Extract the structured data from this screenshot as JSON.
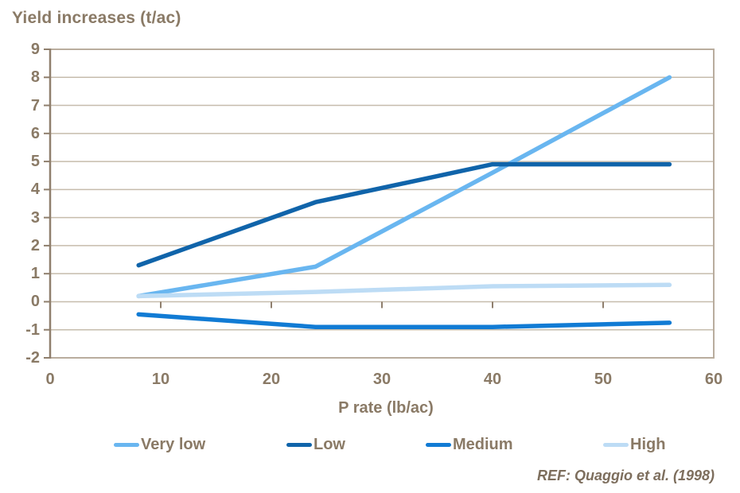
{
  "chart": {
    "title": "Yield increases (t/ac)",
    "x_axis_label": "P rate (lb/ac)",
    "reference": "REF: Quaggio et al. (1998)",
    "text_color": "#8a7a66",
    "grid_color": "#c6bcac",
    "border_color": "#b9ad9e",
    "axis_color": "#8f7f6d",
    "background_color": "#ffffff"
  },
  "chart_data": {
    "type": "line",
    "title": "Yield increases (t/ac)",
    "xlabel": "P rate (lb/ac)",
    "ylabel": "Yield increases (t/ac)",
    "xlim": [
      0,
      60
    ],
    "ylim": [
      -2,
      9
    ],
    "x_ticks": [
      0,
      10,
      20,
      30,
      40,
      50,
      60
    ],
    "y_ticks": [
      9,
      8,
      7,
      6,
      5,
      4,
      3,
      2,
      1,
      0,
      -1,
      -2
    ],
    "grid": "horizontal",
    "legend_position": "bottom",
    "x": [
      8,
      24,
      40,
      56
    ],
    "series": [
      {
        "name": "Very low",
        "color": "#69b6f0",
        "values": [
          0.2,
          1.25,
          4.6,
          8.0
        ]
      },
      {
        "name": "Low",
        "color": "#1064aa",
        "values": [
          1.3,
          3.55,
          4.9,
          4.9
        ]
      },
      {
        "name": "Medium",
        "color": "#117bd4",
        "values": [
          -0.45,
          -0.9,
          -0.9,
          -0.75
        ]
      },
      {
        "name": "High",
        "color": "#bddcf5",
        "values": [
          0.2,
          0.35,
          0.55,
          0.6
        ]
      }
    ],
    "annotation": "REF: Quaggio et al. (1998)"
  }
}
